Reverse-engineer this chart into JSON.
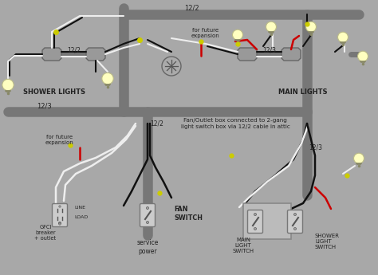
{
  "bg_color": "#a8a8a8",
  "wire_gray": "#777777",
  "wire_dark_gray": "#555555",
  "wire_black": "#111111",
  "wire_white": "#eeeeee",
  "wire_red": "#cc0000",
  "wire_yellow_green": "#cccc00",
  "box_fill": "#999999",
  "box_light": "#cccccc",
  "bulb_fill": "#ffffc0",
  "switch_fill": "#cccccc",
  "text_dark": "#222222",
  "title_text": "Fan/Outlet box connected to 2-gang\nlight switch box via 12/2 cable in attic",
  "label_shower": "SHOWER LIGHTS",
  "label_main": "MAIN LIGHTS",
  "label_fan_sw": "FAN\nSWITCH",
  "label_main_sw": "MAIN\nLIGHT\nSWITCH",
  "label_shower_sw": "SHOWER\nLIGHT\nSWITCH",
  "label_gfci": "GFCI\nbreaker\n+ outlet",
  "label_line": "LINE",
  "label_load": "LOAD",
  "label_svcpwr": "service\npower",
  "label_fut1": "for future\nexpansion",
  "label_fut2": "for future\nexpansion",
  "label_122_top": "12/2",
  "label_122_left": "12/2",
  "label_122_bot": "12/2",
  "label_123_mid": "12/3",
  "label_123_right1": "12/3",
  "label_123_right2": "12/3",
  "label_fut_top": "for future\nexpansion",
  "figsize": [
    4.74,
    3.45
  ],
  "dpi": 100
}
